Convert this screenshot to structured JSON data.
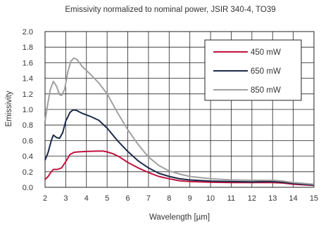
{
  "chart_data": {
    "type": "line",
    "title": "Emissivity normalized to nominal power, JSIR 340-4, TO39",
    "xlabel": "Wavelength [µm]",
    "ylabel": "Emissivity",
    "xlim": [
      2,
      15
    ],
    "ylim": [
      0,
      2.0
    ],
    "xticks": [
      2,
      3,
      4,
      5,
      6,
      7,
      8,
      9,
      10,
      11,
      12,
      13,
      14,
      15
    ],
    "yticks": [
      "0.0",
      "0.2",
      "0.4",
      "0.6",
      "0.8",
      "1.0",
      "1.2",
      "1.4",
      "1.6",
      "1.8",
      "2.0"
    ],
    "grid": true,
    "legend_position": "top-right",
    "series": [
      {
        "name": "450 mW",
        "color": "#c0123e",
        "points": [
          [
            2.0,
            0.1
          ],
          [
            2.15,
            0.14
          ],
          [
            2.3,
            0.2
          ],
          [
            2.4,
            0.23
          ],
          [
            2.6,
            0.23
          ],
          [
            2.8,
            0.25
          ],
          [
            3.0,
            0.33
          ],
          [
            3.2,
            0.42
          ],
          [
            3.4,
            0.45
          ],
          [
            3.6,
            0.455
          ],
          [
            4.0,
            0.46
          ],
          [
            4.5,
            0.465
          ],
          [
            4.8,
            0.465
          ],
          [
            5.0,
            0.455
          ],
          [
            5.3,
            0.43
          ],
          [
            5.6,
            0.39
          ],
          [
            6.0,
            0.32
          ],
          [
            6.5,
            0.25
          ],
          [
            7.0,
            0.19
          ],
          [
            7.5,
            0.14
          ],
          [
            8.0,
            0.11
          ],
          [
            8.5,
            0.085
          ],
          [
            9.0,
            0.075
          ],
          [
            10.0,
            0.065
          ],
          [
            11.0,
            0.06
          ],
          [
            12.0,
            0.06
          ],
          [
            13.0,
            0.06
          ],
          [
            13.5,
            0.055
          ],
          [
            14.0,
            0.04
          ],
          [
            15.0,
            0.025
          ]
        ]
      },
      {
        "name": "650 mW",
        "color": "#1b2a4a",
        "points": [
          [
            2.0,
            0.35
          ],
          [
            2.15,
            0.45
          ],
          [
            2.3,
            0.6
          ],
          [
            2.4,
            0.67
          ],
          [
            2.55,
            0.64
          ],
          [
            2.7,
            0.63
          ],
          [
            2.85,
            0.7
          ],
          [
            3.0,
            0.85
          ],
          [
            3.2,
            0.96
          ],
          [
            3.35,
            0.995
          ],
          [
            3.5,
            0.99
          ],
          [
            3.8,
            0.95
          ],
          [
            4.2,
            0.91
          ],
          [
            4.6,
            0.86
          ],
          [
            5.0,
            0.76
          ],
          [
            5.5,
            0.6
          ],
          [
            6.0,
            0.46
          ],
          [
            6.5,
            0.34
          ],
          [
            7.0,
            0.25
          ],
          [
            7.5,
            0.18
          ],
          [
            8.0,
            0.14
          ],
          [
            8.5,
            0.11
          ],
          [
            9.0,
            0.095
          ],
          [
            10.0,
            0.08
          ],
          [
            11.0,
            0.075
          ],
          [
            12.0,
            0.07
          ],
          [
            13.0,
            0.075
          ],
          [
            13.5,
            0.065
          ],
          [
            14.0,
            0.05
          ],
          [
            15.0,
            0.03
          ]
        ]
      },
      {
        "name": "850 mW",
        "color": "#a0a0a0",
        "points": [
          [
            2.0,
            0.85
          ],
          [
            2.1,
            1.02
          ],
          [
            2.25,
            1.25
          ],
          [
            2.4,
            1.36
          ],
          [
            2.55,
            1.3
          ],
          [
            2.7,
            1.19
          ],
          [
            2.8,
            1.18
          ],
          [
            2.95,
            1.26
          ],
          [
            3.1,
            1.48
          ],
          [
            3.25,
            1.62
          ],
          [
            3.4,
            1.66
          ],
          [
            3.55,
            1.64
          ],
          [
            3.8,
            1.55
          ],
          [
            4.2,
            1.45
          ],
          [
            4.6,
            1.34
          ],
          [
            5.0,
            1.2
          ],
          [
            5.5,
            0.96
          ],
          [
            6.0,
            0.74
          ],
          [
            6.5,
            0.55
          ],
          [
            7.0,
            0.39
          ],
          [
            7.5,
            0.28
          ],
          [
            8.0,
            0.21
          ],
          [
            8.5,
            0.17
          ],
          [
            9.0,
            0.14
          ],
          [
            10.0,
            0.11
          ],
          [
            11.0,
            0.095
          ],
          [
            12.0,
            0.09
          ],
          [
            13.0,
            0.09
          ],
          [
            13.5,
            0.08
          ],
          [
            14.0,
            0.06
          ],
          [
            15.0,
            0.04
          ]
        ]
      }
    ]
  }
}
